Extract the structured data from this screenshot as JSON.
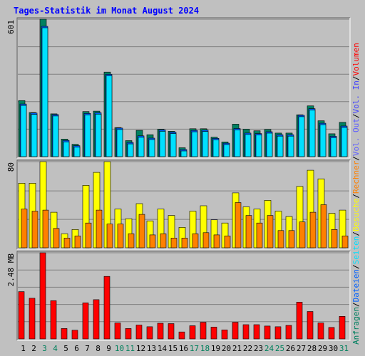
{
  "chart_data": {
    "type": "bar",
    "title": "Tages-Statistik im Monat August 2024",
    "categories": [
      "1",
      "2",
      "3",
      "4",
      "5",
      "6",
      "7",
      "8",
      "9",
      "10",
      "11",
      "12",
      "13",
      "14",
      "15",
      "16",
      "17",
      "18",
      "19",
      "20",
      "21",
      "22",
      "23",
      "24",
      "25",
      "26",
      "27",
      "28",
      "29",
      "30",
      "31"
    ],
    "weekend_days": [
      3,
      4,
      10,
      11,
      17,
      18,
      24,
      25,
      31
    ],
    "panels": [
      {
        "id": "top",
        "scale_label": "601",
        "ylim": [
          0,
          601
        ],
        "series": [
          {
            "name": "Anfragen",
            "color": "#008060",
            "values": [
              245,
              193,
              601,
              187,
              77,
              54,
              197,
              199,
              370,
              127,
              70,
              115,
              96,
              120,
              111,
              39,
              122,
              122,
              85,
              64,
              142,
              120,
              113,
              119,
              103,
              103,
              183,
              222,
              157,
              100,
              150
            ]
          },
          {
            "name": "Dateien",
            "color": "#0060ff",
            "values": [
              230,
              191,
              570,
              184,
              71,
              48,
              189,
              192,
              360,
              125,
              62,
              91,
              81,
              117,
              107,
              31,
              115,
              116,
              80,
              59,
              123,
              103,
              101,
              109,
              96,
              96,
              181,
              210,
              146,
              89,
              134
            ]
          },
          {
            "name": "Seiten",
            "color": "#00e0ff",
            "values": [
              230,
              191,
              570,
              184,
              71,
              48,
              189,
              192,
              360,
              125,
              62,
              91,
              81,
              117,
              107,
              31,
              115,
              116,
              80,
              59,
              123,
              103,
              101,
              109,
              96,
              96,
              181,
              210,
              146,
              89,
              134
            ]
          }
        ]
      },
      {
        "id": "middle",
        "scale_label": "80",
        "ylim": [
          0,
          80
        ],
        "series": [
          {
            "name": "Besuche",
            "color": "#ffff00",
            "values": [
              60,
              60,
              80,
              33,
              13,
              17,
              58,
              70,
              80,
              36,
              27,
              41,
              25,
              36,
              30,
              19,
              34,
              39,
              26,
              23,
              51,
              38,
              36,
              44,
              34,
              29,
              57,
              72,
              64,
              32,
              35
            ]
          },
          {
            "name": "Rechner",
            "color": "#ff8000",
            "values": [
              36,
              34,
              35,
              18,
              9,
              11,
              23,
              35,
              22,
              22,
              13,
              31,
              12,
              13,
              9,
              9,
              13,
              14,
              12,
              11,
              42,
              30,
              23,
              30,
              16,
              16,
              24,
              33,
              40,
              17,
              11
            ]
          }
        ]
      },
      {
        "id": "bottom",
        "scale_label": "2.48 MB",
        "ylim": [
          0,
          2.48
        ],
        "series": [
          {
            "name": "Volumen",
            "color": "#ff0000",
            "values": [
              1.36,
              1.17,
              2.48,
              1.1,
              0.3,
              0.25,
              1.04,
              1.13,
              1.8,
              0.46,
              0.3,
              0.4,
              0.35,
              0.45,
              0.44,
              0.2,
              0.38,
              0.48,
              0.34,
              0.26,
              0.48,
              0.41,
              0.41,
              0.37,
              0.35,
              0.39,
              1.06,
              0.79,
              0.46,
              0.33,
              0.65
            ]
          },
          {
            "name": "Vol. In",
            "color": "#4040ff",
            "values": [
              0,
              0,
              0,
              0,
              0,
              0,
              0,
              0,
              0,
              0,
              0,
              0,
              0,
              0,
              0,
              0,
              0,
              0,
              0,
              0,
              0,
              0,
              0,
              0,
              0,
              0,
              0,
              0,
              0,
              0,
              0
            ]
          },
          {
            "name": "Vol. Out",
            "color": "#6060ff",
            "values": [
              0,
              0,
              0,
              0,
              0,
              0,
              0,
              0,
              0,
              0,
              0,
              0,
              0,
              0,
              0,
              0,
              0,
              0,
              0,
              0,
              0,
              0,
              0,
              0,
              0,
              0,
              0,
              0,
              0,
              0,
              0
            ]
          }
        ]
      }
    ],
    "legend_right": [
      {
        "text": "Anfragen",
        "color": "#008060"
      },
      {
        "text": "/",
        "color": "#000000"
      },
      {
        "text": "Dateien",
        "color": "#0060ff"
      },
      {
        "text": "/",
        "color": "#000000"
      },
      {
        "text": "Seiten",
        "color": "#00e0ff"
      },
      {
        "text": "/",
        "color": "#000000"
      },
      {
        "text": "Besuche",
        "color": "#ffff00"
      },
      {
        "text": "/",
        "color": "#000000"
      },
      {
        "text": "Rechner",
        "color": "#ff8000"
      },
      {
        "text": "/",
        "color": "#000000"
      },
      {
        "text": "Vol. Out",
        "color": "#6060ff"
      },
      {
        "text": "/",
        "color": "#000000"
      },
      {
        "text": "Vol. In",
        "color": "#4040ff"
      },
      {
        "text": "/",
        "color": "#000000"
      },
      {
        "text": "Volumen",
        "color": "#ff0000"
      }
    ],
    "colors": {
      "background": "#c0c0c0",
      "title": "#0000ff",
      "day_label": "#000000",
      "weekend_label": "#00805c",
      "gridline": "#808080"
    }
  }
}
